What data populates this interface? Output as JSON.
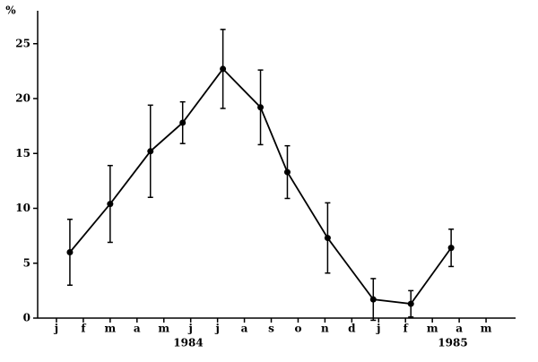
{
  "chart_data": {
    "type": "line",
    "y_label": "%",
    "x": [
      0.5,
      2,
      3.5,
      4.7,
      6.2,
      7.6,
      8.6,
      10.1,
      11.8,
      13.2,
      14.7
    ],
    "values": [
      6,
      10.4,
      15.2,
      17.8,
      22.7,
      19.2,
      13.3,
      7.3,
      1.7,
      1.3,
      6.4
    ],
    "errors": [
      3,
      3.5,
      4.2,
      1.9,
      3.6,
      3.4,
      2.4,
      3.2,
      1.9,
      1.2,
      1.7
    ],
    "color": "#000000",
    "xlim": [
      -0.7,
      17.1
    ],
    "xticks": [
      {
        "value": 0,
        "label": "j"
      },
      {
        "value": 1,
        "label": "f"
      },
      {
        "value": 2,
        "label": "m"
      },
      {
        "value": 3,
        "label": "a"
      },
      {
        "value": 4,
        "label": "m"
      },
      {
        "value": 5,
        "label": "j"
      },
      {
        "value": 6,
        "label": "j"
      },
      {
        "value": 7,
        "label": "a"
      },
      {
        "value": 8,
        "label": "s"
      },
      {
        "value": 9,
        "label": "o"
      },
      {
        "value": 10,
        "label": "n"
      },
      {
        "value": 11,
        "label": "d"
      },
      {
        "value": 12,
        "label": "j"
      },
      {
        "value": 13,
        "label": "f"
      },
      {
        "value": 14,
        "label": "m"
      },
      {
        "value": 15,
        "label": "a"
      },
      {
        "value": 16,
        "label": "m"
      }
    ],
    "ylim": [
      0,
      28
    ],
    "yticks": [
      0,
      5,
      10,
      15,
      20,
      25
    ],
    "annotations": [
      "1984",
      "1985"
    ]
  }
}
